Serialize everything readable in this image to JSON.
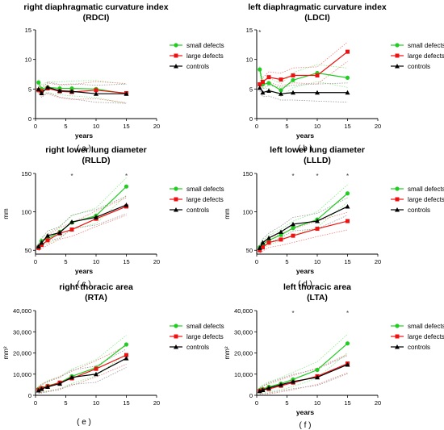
{
  "legend": {
    "small": "small defects",
    "large": "large defects",
    "controls": "controls"
  },
  "colors": {
    "small": "#22cc22",
    "large": "#ee1111",
    "controls": "#000000",
    "small_band": "#88ee88",
    "large_band": "#f08080",
    "controls_band": "#999999"
  },
  "chart_data": [
    {
      "type": "line",
      "title": "right diaphragmatic curvature index",
      "subtitle": "(RDCI)",
      "xlabel": "years",
      "ylabel": "",
      "panel_label": "( a )",
      "xlim": [
        0,
        20
      ],
      "ylim": [
        0,
        15
      ],
      "xticks": [
        "0",
        "5",
        "10",
        "15",
        "20"
      ],
      "yticks": [
        "0",
        "5",
        "10",
        "15"
      ],
      "x": [
        0.5,
        1,
        2,
        4,
        6,
        10,
        15
      ],
      "series": [
        {
          "name": "small defects",
          "values": [
            6.1,
            5.0,
            5.3,
            5.1,
            5.1,
            5.0,
            4.2
          ]
        },
        {
          "name": "large defects",
          "values": [
            4.8,
            4.6,
            5.1,
            4.6,
            4.5,
            4.8,
            4.3
          ]
        },
        {
          "name": "controls",
          "values": [
            5.0,
            4.3,
            5.3,
            4.7,
            4.6,
            4.2,
            4.2
          ]
        }
      ],
      "significance_x": []
    },
    {
      "type": "line",
      "title": "left diaphragmatic curvature index",
      "subtitle": "(LDCI)",
      "xlabel": "years",
      "ylabel": "",
      "panel_label": "( b )",
      "xlim": [
        0,
        20
      ],
      "ylim": [
        0,
        15
      ],
      "xticks": [
        "0",
        "5",
        "10",
        "15",
        "20"
      ],
      "yticks": [
        "0",
        "5",
        "10",
        "15"
      ],
      "x": [
        0.5,
        1,
        2,
        4,
        6,
        10,
        15
      ],
      "series": [
        {
          "name": "small defects",
          "values": [
            8.3,
            5.8,
            6.0,
            4.8,
            6.5,
            7.7,
            6.9
          ]
        },
        {
          "name": "large defects",
          "values": [
            5.8,
            6.2,
            7.0,
            6.6,
            7.3,
            7.3,
            11.3
          ]
        },
        {
          "name": "controls",
          "values": [
            5.2,
            4.4,
            4.7,
            4.2,
            4.4,
            4.4,
            4.4
          ]
        }
      ],
      "significance_x": [
        0.5
      ]
    },
    {
      "type": "line",
      "title": "right lower lung diameter",
      "subtitle": "(RLLD)",
      "xlabel": "years",
      "ylabel": "mm",
      "panel_label": "( c )",
      "xlim": [
        0,
        20
      ],
      "ylim": [
        45,
        150
      ],
      "xticks": [
        "0",
        "5",
        "10",
        "15",
        "20"
      ],
      "yticks": [
        "50",
        "100",
        "150"
      ],
      "x": [
        0.5,
        1,
        2,
        4,
        6,
        10,
        15
      ],
      "series": [
        {
          "name": "small defects",
          "values": [
            55,
            62,
            65,
            74,
            86,
            95,
            133
          ]
        },
        {
          "name": "large defects",
          "values": [
            53,
            57,
            63,
            72,
            77,
            91,
            107
          ]
        },
        {
          "name": "controls",
          "values": [
            55,
            60,
            69,
            73,
            87,
            93,
            109
          ]
        }
      ],
      "significance_x": [
        6,
        15
      ]
    },
    {
      "type": "line",
      "title": "left lower lung diameter",
      "subtitle": "(LLLD)",
      "xlabel": "years",
      "ylabel": "mm",
      "panel_label": "( d )",
      "xlim": [
        0,
        20
      ],
      "ylim": [
        45,
        150
      ],
      "xticks": [
        "0",
        "5",
        "10",
        "15",
        "20"
      ],
      "yticks": [
        "50",
        "100",
        "150"
      ],
      "x": [
        0.5,
        1,
        2,
        4,
        6,
        10,
        15
      ],
      "series": [
        {
          "name": "small defects",
          "values": [
            54,
            58,
            63,
            70,
            79,
            90,
            124
          ]
        },
        {
          "name": "large defects",
          "values": [
            50,
            54,
            60,
            64,
            69,
            78,
            88
          ]
        },
        {
          "name": "controls",
          "values": [
            53,
            60,
            66,
            74,
            84,
            88,
            107
          ]
        }
      ],
      "significance_x": [
        6,
        10,
        15
      ]
    },
    {
      "type": "line",
      "title": "right thoracic area",
      "subtitle": "(RTA)",
      "xlabel": "",
      "ylabel": "mm²",
      "panel_label": "( e )",
      "xlim": [
        0,
        20
      ],
      "ylim": [
        0,
        40000
      ],
      "xticks": [
        "0",
        "5",
        "10",
        "15",
        "20"
      ],
      "yticks": [
        "0",
        "10,000",
        "20,000",
        "30,000",
        "40,000"
      ],
      "x": [
        0.5,
        1,
        2,
        4,
        6,
        10,
        15
      ],
      "series": [
        {
          "name": "small defects",
          "values": [
            3000,
            3500,
            4500,
            6000,
            9000,
            13000,
            24000
          ]
        },
        {
          "name": "large defects",
          "values": [
            2500,
            3300,
            4200,
            6000,
            8000,
            12500,
            19000
          ]
        },
        {
          "name": "controls",
          "values": [
            2300,
            3000,
            4000,
            5500,
            8500,
            10000,
            17500
          ]
        }
      ],
      "significance_x": []
    },
    {
      "type": "line",
      "title": "left thoracic area",
      "subtitle": "(LTA)",
      "xlabel": "years",
      "ylabel": "mm²",
      "panel_label": "( f )",
      "xlim": [
        0,
        20
      ],
      "ylim": [
        0,
        40000
      ],
      "xticks": [
        "0",
        "5",
        "10",
        "15",
        "20"
      ],
      "yticks": [
        "0",
        "10,000",
        "20,000",
        "30,000",
        "40,000"
      ],
      "x": [
        0.5,
        1,
        2,
        4,
        6,
        10,
        15
      ],
      "series": [
        {
          "name": "small defects",
          "values": [
            2500,
            3000,
            4000,
            5500,
            7500,
            12000,
            24500
          ]
        },
        {
          "name": "large defects",
          "values": [
            2000,
            2500,
            3000,
            4500,
            6000,
            9000,
            15000
          ]
        },
        {
          "name": "controls",
          "values": [
            2000,
            2500,
            3500,
            5000,
            6500,
            8500,
            14500
          ]
        }
      ],
      "significance_x": [
        6,
        15
      ]
    }
  ]
}
